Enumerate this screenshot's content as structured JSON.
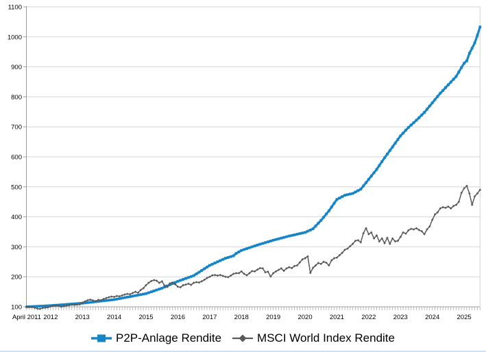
{
  "chart_data": {
    "type": "line",
    "title": "",
    "legend_position": "bottom",
    "grid": true,
    "x_axis": {
      "unit": "month",
      "start": "April 2011",
      "months_total": 172,
      "minor_ticks": "monthly",
      "ticks": [
        {
          "label": "April 2011",
          "month": 0
        },
        {
          "label": "2012",
          "month": 9
        },
        {
          "label": "2013",
          "month": 21
        },
        {
          "label": "2014",
          "month": 33
        },
        {
          "label": "2015",
          "month": 45
        },
        {
          "label": "2016",
          "month": 57
        },
        {
          "label": "2017",
          "month": 69
        },
        {
          "label": "2018",
          "month": 81
        },
        {
          "label": "2019",
          "month": 93
        },
        {
          "label": "2020",
          "month": 105
        },
        {
          "label": "2021",
          "month": 117
        },
        {
          "label": "2022",
          "month": 129
        },
        {
          "label": "2023",
          "month": 141
        },
        {
          "label": "2024",
          "month": 153
        },
        {
          "label": "2025",
          "month": 165
        }
      ]
    },
    "y_axis": {
      "min": 100,
      "max": 1100,
      "step": 100,
      "tick_labels": [
        "100",
        "200",
        "300",
        "400",
        "500",
        "600",
        "700",
        "800",
        "900",
        "1000",
        "1100"
      ]
    },
    "series": [
      {
        "name": "P2P-Anlage Rendite",
        "color": "#1685c8",
        "marker": "square",
        "line_width": 3.2,
        "points_monthly_anchor": [
          [
            0,
            100
          ],
          [
            9,
            104
          ],
          [
            21,
            112
          ],
          [
            33,
            124
          ],
          [
            45,
            144
          ],
          [
            51,
            162
          ],
          [
            57,
            185
          ],
          [
            63,
            204
          ],
          [
            69,
            238
          ],
          [
            75,
            262
          ],
          [
            78,
            270
          ],
          [
            79,
            278
          ],
          [
            81,
            288
          ],
          [
            87,
            306
          ],
          [
            93,
            322
          ],
          [
            99,
            336
          ],
          [
            105,
            348
          ],
          [
            108,
            360
          ],
          [
            111,
            388
          ],
          [
            114,
            420
          ],
          [
            117,
            458
          ],
          [
            120,
            472
          ],
          [
            123,
            478
          ],
          [
            126,
            492
          ],
          [
            129,
            525
          ],
          [
            132,
            558
          ],
          [
            135,
            597
          ],
          [
            138,
            633
          ],
          [
            141,
            670
          ],
          [
            144,
            698
          ],
          [
            147,
            722
          ],
          [
            150,
            748
          ],
          [
            153,
            780
          ],
          [
            156,
            812
          ],
          [
            159,
            840
          ],
          [
            162,
            868
          ],
          [
            164,
            898
          ],
          [
            165,
            912
          ],
          [
            166,
            920
          ],
          [
            167,
            945
          ],
          [
            168,
            962
          ],
          [
            169,
            980
          ],
          [
            170,
            1005
          ],
          [
            171,
            1033
          ]
        ]
      },
      {
        "name": "MSCI World Index Rendite",
        "color": "#595959",
        "marker": "diamond",
        "line_width": 1.5,
        "values_monthly": [
          100,
          100,
          99,
          97,
          94,
          93,
          96,
          97,
          98,
          101,
          104,
          105,
          104,
          100,
          102,
          104,
          105,
          107,
          106,
          107,
          108,
          114,
          118,
          122,
          124,
          121,
          119,
          123,
          122,
          126,
          129,
          132,
          134,
          133,
          136,
          135,
          138,
          141,
          143,
          142,
          146,
          150,
          147,
          156,
          162,
          172,
          180,
          186,
          189,
          187,
          180,
          185,
          171,
          166,
          178,
          181,
          175,
          167,
          165,
          172,
          174,
          177,
          173,
          180,
          182,
          181,
          185,
          190,
          196,
          200,
          205,
          206,
          204,
          206,
          203,
          200,
          199,
          204,
          210,
          212,
          212,
          218,
          210,
          205,
          212,
          219,
          218,
          224,
          229,
          228,
          215,
          217,
          201,
          212,
          218,
          223,
          228,
          220,
          228,
          232,
          229,
          236,
          238,
          248,
          258,
          262,
          268,
          213,
          230,
          238,
          246,
          243,
          250,
          247,
          238,
          255,
          262,
          264,
          272,
          280,
          290,
          294,
          302,
          310,
          320,
          322,
          315,
          345,
          362,
          342,
          348,
          328,
          338,
          318,
          328,
          312,
          330,
          310,
          328,
          318,
          320,
          333,
          348,
          344,
          355,
          360,
          358,
          362,
          356,
          352,
          342,
          358,
          368,
          390,
          408,
          415,
          428,
          432,
          430,
          434,
          428,
          436,
          440,
          450,
          480,
          495,
          503,
          478,
          440,
          468,
          478,
          490
        ]
      }
    ]
  },
  "colors": {
    "background": "#ffffff",
    "gridline": "#d6d6d6",
    "plot_border": "#d6d6d6",
    "axis_line": "#9c9c9c",
    "minor_tick": "#adadad",
    "label_text": "#000000",
    "bottom_edge": "#cfe0f1"
  }
}
